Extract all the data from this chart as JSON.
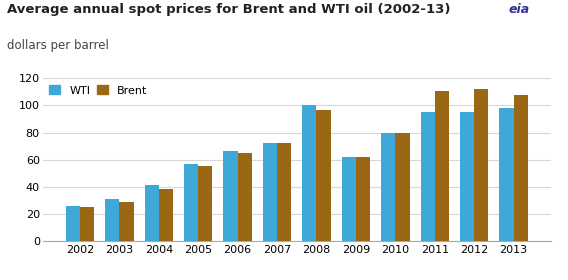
{
  "title": "Average annual spot prices for Brent and WTI oil (2002-13)",
  "subtitle": "dollars per barrel",
  "years": [
    2002,
    2003,
    2004,
    2005,
    2006,
    2007,
    2008,
    2009,
    2010,
    2011,
    2012,
    2013
  ],
  "WTI": [
    26,
    31,
    41,
    57,
    66,
    72,
    100,
    62,
    80,
    95,
    95,
    98
  ],
  "Brent": [
    25,
    29,
    38,
    55,
    65,
    72,
    97,
    62,
    80,
    111,
    112,
    108
  ],
  "wti_color": "#3ea8d8",
  "brent_color": "#9a6714",
  "ylim": [
    0,
    120
  ],
  "yticks": [
    0,
    20,
    40,
    60,
    80,
    100,
    120
  ],
  "background_color": "#ffffff",
  "grid_color": "#d8d8d8",
  "bar_width": 0.36,
  "legend_labels": [
    "WTI",
    "Brent"
  ],
  "title_fontsize": 9.5,
  "subtitle_fontsize": 8.5,
  "tick_fontsize": 8
}
